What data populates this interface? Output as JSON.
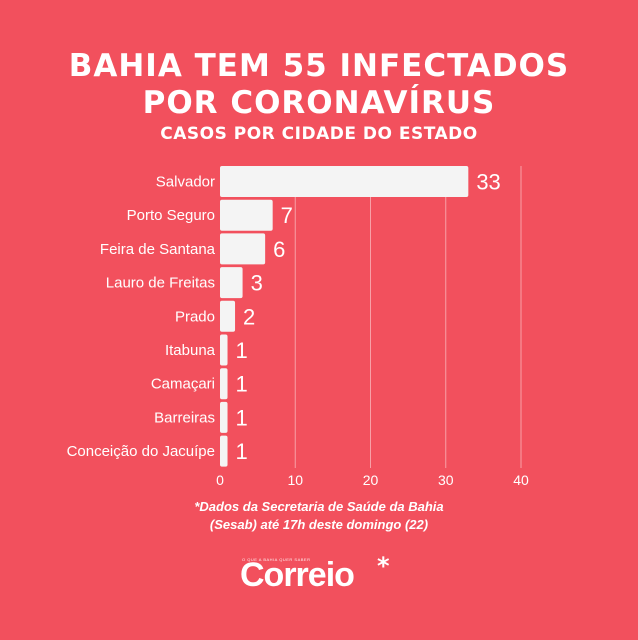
{
  "header": {
    "title_line1": "BAHIA TEM 55 INFECTADOS",
    "title_line2": "POR CORONAVÍRUS",
    "subtitle": "CASOS POR CIDADE DO ESTADO"
  },
  "chart_data": {
    "type": "bar",
    "orientation": "horizontal",
    "categories": [
      "Salvador",
      "Porto Seguro",
      "Feira de Santana",
      "Lauro de Freitas",
      "Prado",
      "Itabuna",
      "Camaçari",
      "Barreiras",
      "Conceição do Jacuípe"
    ],
    "values": [
      33,
      7,
      6,
      3,
      2,
      1,
      1,
      1,
      1
    ],
    "xticks": [
      0,
      10,
      20,
      30,
      40
    ],
    "xlim": [
      0,
      40
    ],
    "grid": true,
    "bar_color": "#f4f4f4",
    "background_color": "#f2505d"
  },
  "footnote": {
    "line1": "*Dados da Secretaria de Saúde da Bahia",
    "line2": "(Sesab) até 17h deste domingo (22)"
  },
  "brand": {
    "tagline": "O QUE A BAHIA QUER SABER",
    "name": "Correio",
    "mark": "*"
  }
}
